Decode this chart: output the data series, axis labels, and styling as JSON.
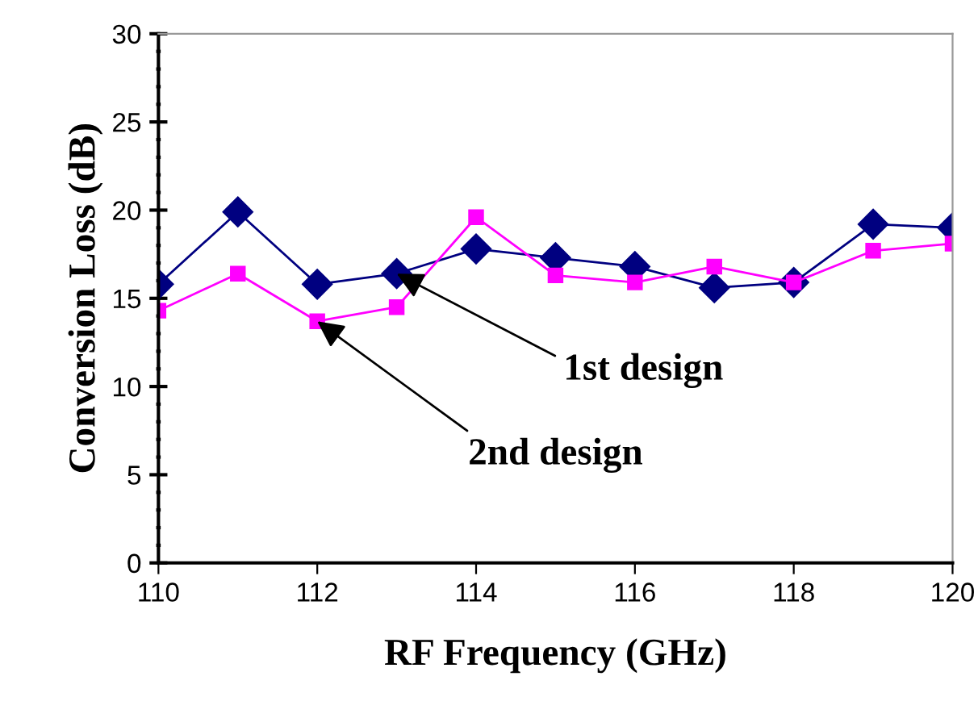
{
  "chart_data": {
    "type": "line",
    "xlabel": "RF Frequency (GHz)",
    "ylabel": "Conversion Loss (dB)",
    "x": [
      110,
      111,
      112,
      113,
      114,
      115,
      116,
      117,
      118,
      119,
      120
    ],
    "series": [
      {
        "color": "#000080",
        "marker": "diamond",
        "values": [
          15.8,
          19.9,
          15.8,
          16.4,
          17.8,
          17.3,
          16.8,
          15.6,
          15.9,
          19.2,
          19.0
        ]
      },
      {
        "color": "#ff00ff",
        "marker": "square",
        "values": [
          14.3,
          16.4,
          13.7,
          14.5,
          19.6,
          16.3,
          15.9,
          16.8,
          15.9,
          17.7,
          18.1
        ]
      }
    ],
    "xlim": [
      110,
      120
    ],
    "xticks": [
      110,
      112,
      114,
      116,
      118,
      120
    ],
    "ylim": [
      0,
      30
    ],
    "yticks": [
      0,
      5,
      10,
      15,
      20,
      25,
      30
    ],
    "grid": false,
    "legend": false,
    "annotations": [
      {
        "text": "1st design",
        "x": 113,
        "y": 16.4
      },
      {
        "text": "2nd design",
        "x": 112,
        "y": 13.7
      }
    ]
  }
}
